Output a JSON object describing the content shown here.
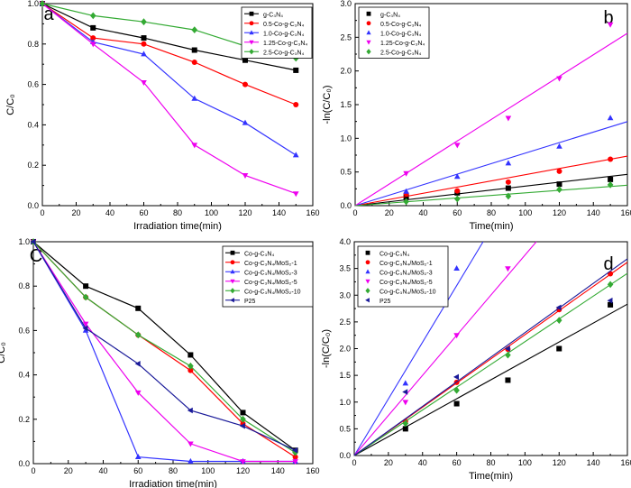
{
  "chart_data": [
    {
      "panel_label": "a",
      "type": "line",
      "xlabel": "Irradiation time(min)",
      "ylabel": "C/C₀",
      "xlim": [
        0,
        160
      ],
      "ylim": [
        0,
        1.0
      ],
      "xticks": [
        0,
        20,
        40,
        60,
        80,
        100,
        120,
        140,
        160
      ],
      "yticks": [
        0,
        0.2,
        0.4,
        0.6,
        0.8,
        1.0
      ],
      "x": [
        0,
        30,
        60,
        90,
        120,
        150
      ],
      "legend_position": "top-right",
      "series": [
        {
          "name": "g-C₃N₄",
          "color": "#000000",
          "marker": "square",
          "values": [
            1.0,
            0.88,
            0.83,
            0.77,
            0.72,
            0.67
          ]
        },
        {
          "name": "0.5-Co-g-C₃N₄",
          "color": "#ff0000",
          "marker": "circle",
          "values": [
            1.0,
            0.83,
            0.8,
            0.71,
            0.6,
            0.5
          ]
        },
        {
          "name": "1.0-Co-g-C₃N₄",
          "color": "#3333ff",
          "marker": "triangle-up",
          "values": [
            1.0,
            0.81,
            0.75,
            0.53,
            0.41,
            0.25
          ]
        },
        {
          "name": "1.25-Co-g-C₃N₄",
          "color": "#ee00ee",
          "marker": "triangle-down",
          "values": [
            1.0,
            0.8,
            0.61,
            0.3,
            0.15,
            0.06
          ]
        },
        {
          "name": "2.5-Co-g-C₃N₄",
          "color": "#33aa33",
          "marker": "diamond",
          "values": [
            1.0,
            0.94,
            0.91,
            0.87,
            0.79,
            0.73
          ]
        }
      ]
    },
    {
      "panel_label": "b",
      "type": "scatter",
      "xlabel": "Time(min)",
      "ylabel": "-ln(C/C₀)",
      "xlim": [
        0,
        160
      ],
      "ylim": [
        0,
        3.0
      ],
      "xticks": [
        0,
        20,
        40,
        60,
        80,
        100,
        120,
        140,
        160
      ],
      "yticks": [
        0,
        0.5,
        1.0,
        1.5,
        2.0,
        2.5,
        3.0
      ],
      "x": [
        30,
        60,
        90,
        120,
        150
      ],
      "legend_position": "top-left",
      "series": [
        {
          "name": "g-C₃N₄",
          "color": "#000000",
          "marker": "square",
          "values": [
            0.13,
            0.19,
            0.26,
            0.32,
            0.39
          ],
          "fit_slope": 0.0029
        },
        {
          "name": "0.5-Co-g-C₃N₄",
          "color": "#ff0000",
          "marker": "circle",
          "values": [
            0.18,
            0.22,
            0.35,
            0.51,
            0.69
          ],
          "fit_slope": 0.0046
        },
        {
          "name": "1.0-Co-g-C₃N₄",
          "color": "#3333ff",
          "marker": "triangle-up",
          "values": [
            0.21,
            0.43,
            0.63,
            0.88,
            1.3
          ],
          "fit_slope": 0.0078
        },
        {
          "name": "1.25-Co-g-C₃N₄",
          "color": "#ee00ee",
          "marker": "triangle-down",
          "values": [
            0.48,
            0.9,
            1.3,
            1.89,
            2.69
          ],
          "fit_slope": 0.016
        },
        {
          "name": "2.5-Co-g-C₃N₄",
          "color": "#33aa33",
          "marker": "diamond",
          "values": [
            0.06,
            0.1,
            0.14,
            0.24,
            0.31
          ],
          "fit_slope": 0.0019
        }
      ]
    },
    {
      "panel_label": "C",
      "type": "line",
      "xlabel": "Irradiation time(min)",
      "ylabel": "C/C₀",
      "xlim": [
        0,
        160
      ],
      "ylim": [
        0,
        1.0
      ],
      "xticks": [
        0,
        20,
        40,
        60,
        80,
        100,
        120,
        140,
        160
      ],
      "yticks": [
        0,
        0.2,
        0.4,
        0.6,
        0.8,
        1.0
      ],
      "x": [
        0,
        30,
        60,
        90,
        120,
        150
      ],
      "legend_position": "top-right",
      "series": [
        {
          "name": "Co-g-C₃N₄",
          "color": "#000000",
          "marker": "square",
          "values": [
            1.0,
            0.8,
            0.7,
            0.49,
            0.23,
            0.06
          ]
        },
        {
          "name": "Co-g-C₃N₄/MoS₂-1",
          "color": "#ff0000",
          "marker": "circle",
          "values": [
            1.0,
            0.75,
            0.58,
            0.42,
            0.18,
            0.03
          ]
        },
        {
          "name": "Co-g-C₃N₄/MoS₂-3",
          "color": "#3333ff",
          "marker": "triangle-up",
          "values": [
            1.0,
            0.6,
            0.03,
            0.01,
            0.01,
            0.01
          ]
        },
        {
          "name": "Co-g-C₃N₄/MoS₂-5",
          "color": "#ee00ee",
          "marker": "triangle-down",
          "values": [
            1.0,
            0.63,
            0.32,
            0.09,
            0.01,
            0.01
          ]
        },
        {
          "name": "Co-g-C₃N₄/MoS₂-10",
          "color": "#33aa33",
          "marker": "diamond",
          "values": [
            1.0,
            0.75,
            0.58,
            0.44,
            0.2,
            0.05
          ]
        },
        {
          "name": "P25",
          "color": "#1a1a99",
          "marker": "triangle-left",
          "values": [
            1.0,
            0.61,
            0.45,
            0.24,
            0.17,
            0.06
          ]
        }
      ]
    },
    {
      "panel_label": "d",
      "type": "scatter",
      "xlabel": "Time(min)",
      "ylabel": "-ln(C/C₀)",
      "xlim": [
        0,
        160
      ],
      "ylim": [
        0,
        4.0
      ],
      "xticks": [
        0,
        20,
        40,
        60,
        80,
        100,
        120,
        140,
        160
      ],
      "yticks": [
        0,
        0.5,
        1.0,
        1.5,
        2.0,
        2.5,
        3.0,
        3.5,
        4.0
      ],
      "x": [
        30,
        60,
        90,
        120,
        150
      ],
      "legend_position": "top-left",
      "series": [
        {
          "name": "Co-g-C₃N₄",
          "color": "#000000",
          "marker": "square",
          "values": [
            0.5,
            0.97,
            1.41,
            2.0,
            2.82
          ],
          "fit_slope": 0.0177
        },
        {
          "name": "Co-g-C₃N₄/MoS₂-1",
          "color": "#ff0000",
          "marker": "circle",
          "values": [
            0.64,
            1.37,
            1.99,
            2.73,
            3.4
          ],
          "fit_slope": 0.0226
        },
        {
          "name": "Co-g-C₃N₄/MoS₂-3",
          "color": "#3333ff",
          "marker": "triangle-up",
          "values": [
            1.35,
            3.5
          ],
          "fit_slope": 0.053
        },
        {
          "name": "Co-g-C₃N₄/MoS₂-5",
          "color": "#ee00ee",
          "marker": "triangle-down",
          "values": [
            1.0,
            2.25,
            3.5
          ],
          "fit_slope": 0.0375
        },
        {
          "name": "Co-g-C₃N₄/MoS₂-10",
          "color": "#33aa33",
          "marker": "diamond",
          "values": [
            0.6,
            1.22,
            1.88,
            2.53,
            3.2
          ],
          "fit_slope": 0.0213
        },
        {
          "name": "P25",
          "color": "#1a1a99",
          "marker": "triangle-left",
          "values": [
            1.19,
            1.47,
            2.0,
            2.77,
            2.9
          ],
          "fit_slope": 0.023
        }
      ]
    }
  ]
}
